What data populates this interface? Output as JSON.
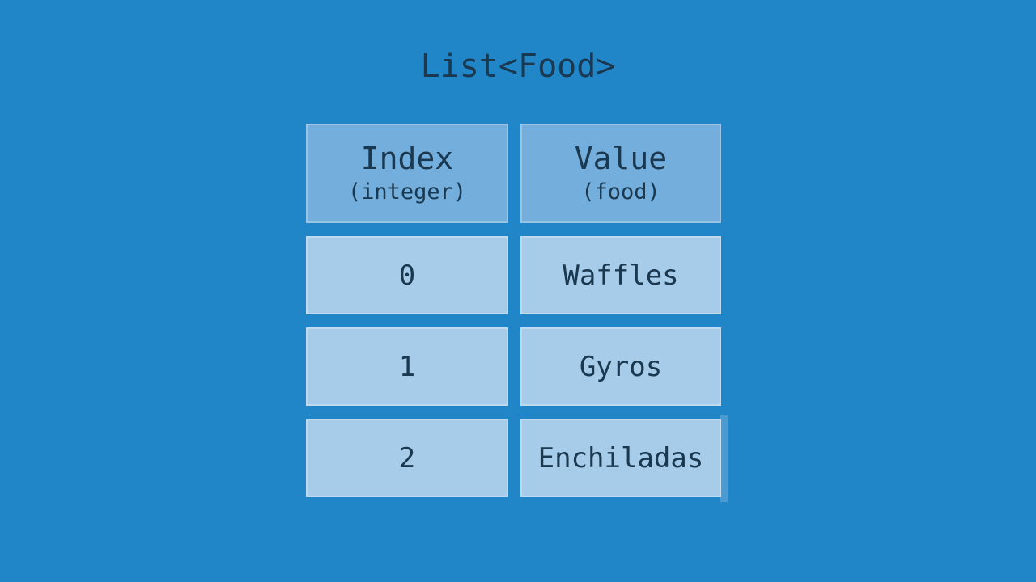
{
  "title": "List<Food>",
  "colors": {
    "background": "#2186C8",
    "header_cell": "#74AEDC",
    "data_cell": "#A7CCE9",
    "text": "#1A384F",
    "cell_border": "rgba(255,255,255,0.28)",
    "artifact": "rgba(255,255,255,0.18)"
  },
  "table": {
    "columns": [
      {
        "label": "Index",
        "sublabel": "(integer)"
      },
      {
        "label": "Value",
        "sublabel": "(food)"
      }
    ],
    "rows": [
      {
        "index": "0",
        "value": "Waffles"
      },
      {
        "index": "1",
        "value": "Gyros"
      },
      {
        "index": "2",
        "value": "Enchiladas"
      }
    ]
  }
}
